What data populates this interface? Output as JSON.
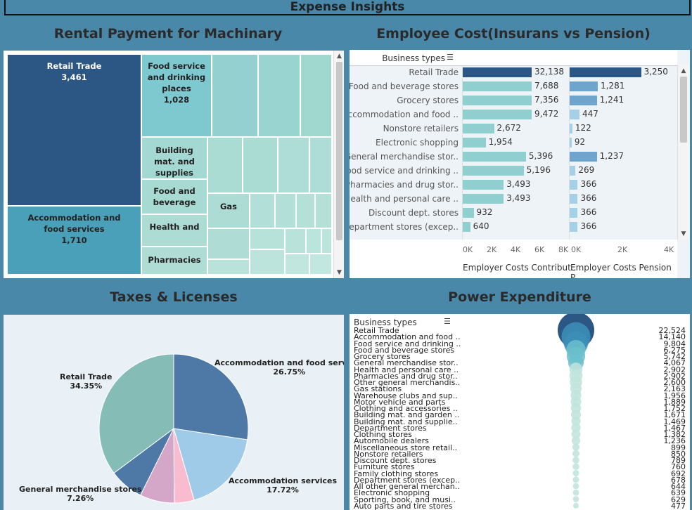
{
  "page_title": "Expense Insights",
  "rental": {
    "title": "Rental Payment for Machinary",
    "cells": [
      {
        "label": "Retail Trade",
        "value": "3,461"
      },
      {
        "label": "Accommodation and food services",
        "value": "1,710"
      },
      {
        "label": "Food service and drinking places",
        "value": "1,028"
      },
      {
        "label": "Building mat. and supplies",
        "value": ""
      },
      {
        "label": "Food and beverage",
        "value": ""
      },
      {
        "label": "Gas",
        "value": ""
      },
      {
        "label": "Health and",
        "value": ""
      },
      {
        "label": "Pharmacies",
        "value": ""
      }
    ]
  },
  "employee": {
    "title": "Employee Cost(Insurans vs Pension)",
    "header_label": "Business types",
    "rows": [
      {
        "label": "Retail Trade",
        "ins": 32138,
        "ins_label": "32,138",
        "pen": 3250,
        "pen_label": "3,250"
      },
      {
        "label": "Food and beverage stores",
        "ins": 7688,
        "ins_label": "7,688",
        "pen": 1281,
        "pen_label": "1,281"
      },
      {
        "label": "Grocery stores",
        "ins": 7356,
        "ins_label": "7,356",
        "pen": 1241,
        "pen_label": "1,241"
      },
      {
        "label": "Accommodation and food ..",
        "ins": 9472,
        "ins_label": "9,472",
        "pen": 447,
        "pen_label": "447"
      },
      {
        "label": "Nonstore retailers",
        "ins": 2672,
        "ins_label": "2,672",
        "pen": 122,
        "pen_label": "122"
      },
      {
        "label": "Electronic shopping",
        "ins": 1954,
        "ins_label": "1,954",
        "pen": 92,
        "pen_label": "92"
      },
      {
        "label": "General merchandise stor..",
        "ins": 5396,
        "ins_label": "5,396",
        "pen": 1237,
        "pen_label": "1,237"
      },
      {
        "label": "Food service and drinking ..",
        "ins": 5196,
        "ins_label": "5,196",
        "pen": 269,
        "pen_label": "269"
      },
      {
        "label": "Pharmacies and drug stor..",
        "ins": 3493,
        "ins_label": "3,493",
        "pen": 366,
        "pen_label": "366"
      },
      {
        "label": "Health and personal care ..",
        "ins": 3493,
        "ins_label": "3,493",
        "pen": 366,
        "pen_label": "366"
      },
      {
        "label": "Discount dept. stores",
        "ins": 932,
        "ins_label": "932",
        "pen": 366,
        "pen_label": "366"
      },
      {
        "label": "Department stores (excep..",
        "ins": 640,
        "ins_label": "640",
        "pen": 366,
        "pen_label": "366"
      }
    ],
    "axis1_ticks": [
      "0K",
      "2K",
      "4K",
      "6K",
      "8K"
    ],
    "axis2_ticks": [
      "0K",
      "2K",
      "4K"
    ],
    "axis1_title": "Employer Costs Contribut..",
    "axis2_title": "Employer Costs Pension P.."
  },
  "taxes": {
    "title": "Taxes & Licenses",
    "slices": [
      {
        "label": "Accommodation and food services",
        "pct": "26.75%",
        "value": 26.75,
        "color": "#4e79a7"
      },
      {
        "label": "Accommodation services",
        "pct": "17.72%",
        "value": 17.72,
        "color": "#a0cbe8"
      },
      {
        "label": "",
        "pct": "",
        "value": 4.2,
        "color": "#f8bbd0"
      },
      {
        "label": "",
        "pct": "",
        "value": 7.3,
        "color": "#d4a6c8"
      },
      {
        "label": "General merchandise stores",
        "pct": "7.26%",
        "value": 7.26,
        "color": "#4e79a7"
      },
      {
        "label": "Retail Trade",
        "pct": "34.35%",
        "value": 34.35,
        "color": "#86bcb6"
      }
    ]
  },
  "power": {
    "title": "Power Expenditure",
    "header_label": "Business types",
    "rows": [
      {
        "label": "Retail Trade",
        "value": "22,524"
      },
      {
        "label": "Accommodation and food ..",
        "value": "14,140"
      },
      {
        "label": "Food service and drinking ..",
        "value": "9,804"
      },
      {
        "label": "Food and beverage stores",
        "value": "6,275"
      },
      {
        "label": "Grocery stores",
        "value": "5,742"
      },
      {
        "label": "General merchandise stor..",
        "value": "4,067"
      },
      {
        "label": "Health and personal care ..",
        "value": "2,902"
      },
      {
        "label": "Pharmacies and drug stor..",
        "value": "2,902"
      },
      {
        "label": "Other general merchandis..",
        "value": "2,600"
      },
      {
        "label": "Gas stations",
        "value": "2,163"
      },
      {
        "label": "Warehouse clubs and sup..",
        "value": "1,956"
      },
      {
        "label": "Motor vehicle and parts",
        "value": "1,889"
      },
      {
        "label": "Clothing and accessories ..",
        "value": "1,752"
      },
      {
        "label": "Building mat. and garden ..",
        "value": "1,671"
      },
      {
        "label": "Building mat. and supplie..",
        "value": "1,469"
      },
      {
        "label": "Department stores",
        "value": "1,467"
      },
      {
        "label": "Clothing stores",
        "value": "1,382"
      },
      {
        "label": "Automobile dealers",
        "value": "1,236"
      },
      {
        "label": "Miscellaneous store retail..",
        "value": "899"
      },
      {
        "label": "Nonstore retailers",
        "value": "850"
      },
      {
        "label": "Discount dept. stores",
        "value": "789"
      },
      {
        "label": "Furniture stores",
        "value": "760"
      },
      {
        "label": "Family clothing stores",
        "value": "692"
      },
      {
        "label": "Department stores (excep..",
        "value": "678"
      },
      {
        "label": "All other general merchan..",
        "value": "644"
      },
      {
        "label": "Electronic shopping",
        "value": "639"
      },
      {
        "label": "Sporting, book, and musi..",
        "value": "629"
      },
      {
        "label": "Auto parts and tire stores",
        "value": "477"
      }
    ]
  }
}
